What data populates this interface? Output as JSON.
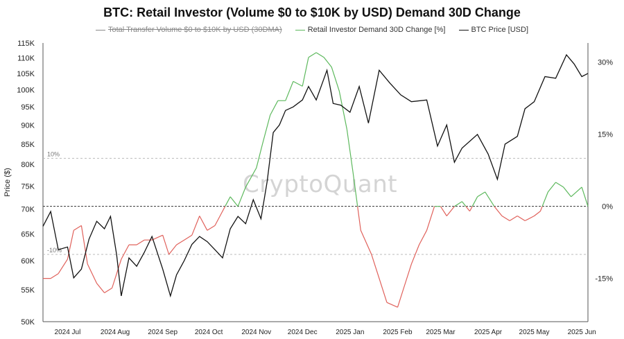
{
  "title": "BTC: Retail Investor (Volume $0 to $10K by USD) Demand 30D Change",
  "watermark": "CryptoQuant",
  "legend": [
    {
      "label": "Total Transfer Volume $0 to $10K by USD (30DMA)",
      "color": "#888888",
      "disabled": true
    },
    {
      "label": "Retail Investor Demand 30D Change [%]",
      "color": "#5cb85c",
      "disabled": false
    },
    {
      "label": "BTC Price [USD]",
      "color": "#111111",
      "disabled": false
    }
  ],
  "chart_data": {
    "type": "line",
    "xlabel": "",
    "ylabel": "Price ($)",
    "x_tick_labels": [
      "2024 Jul",
      "2024 Aug",
      "2024 Sep",
      "2024 Oct",
      "2024 Nov",
      "2024 Dec",
      "2025 Jan",
      "2025 Feb",
      "2025 Mar",
      "2025 Apr",
      "2025 May",
      "2025 Jun"
    ],
    "y_left": {
      "scale": "log",
      "ticks": [
        50000,
        55000,
        60000,
        65000,
        70000,
        75000,
        80000,
        85000,
        90000,
        95000,
        100000,
        105000,
        110000,
        115000
      ],
      "tick_labels": [
        "50K",
        "55K",
        "60K",
        "65K",
        "70K",
        "75K",
        "80K",
        "85K",
        "90K",
        "95K",
        "100K",
        "105K",
        "110K",
        "115K"
      ]
    },
    "y_right": {
      "ticks": [
        30,
        15,
        0,
        -15
      ],
      "tick_labels": [
        "30%",
        "15%",
        "0%",
        "-15%"
      ],
      "range": [
        -24,
        34
      ]
    },
    "reference_lines": [
      {
        "axis": "right",
        "value": 10,
        "label": "10%"
      },
      {
        "axis": "right",
        "value": 0,
        "label": ""
      },
      {
        "axis": "right",
        "value": -10,
        "label": "-10%"
      }
    ],
    "series": [
      {
        "name": "BTC Price [USD]",
        "axis": "left",
        "color": "#111111",
        "x": [
          "2024-06-15",
          "2024-06-20",
          "2024-06-25",
          "2024-07-01",
          "2024-07-05",
          "2024-07-10",
          "2024-07-15",
          "2024-07-20",
          "2024-07-25",
          "2024-07-29",
          "2024-08-02",
          "2024-08-05",
          "2024-08-10",
          "2024-08-15",
          "2024-08-20",
          "2024-08-25",
          "2024-09-01",
          "2024-09-06",
          "2024-09-10",
          "2024-09-15",
          "2024-09-20",
          "2024-09-25",
          "2024-09-30",
          "2024-10-05",
          "2024-10-10",
          "2024-10-15",
          "2024-10-20",
          "2024-10-25",
          "2024-10-30",
          "2024-11-04",
          "2024-11-08",
          "2024-11-12",
          "2024-11-16",
          "2024-11-20",
          "2024-11-25",
          "2024-12-01",
          "2024-12-05",
          "2024-12-10",
          "2024-12-17",
          "2024-12-21",
          "2024-12-26",
          "2025-01-01",
          "2025-01-07",
          "2025-01-13",
          "2025-01-20",
          "2025-01-27",
          "2025-02-03",
          "2025-02-10",
          "2025-02-20",
          "2025-02-27",
          "2025-03-05",
          "2025-03-10",
          "2025-03-15",
          "2025-03-25",
          "2025-04-01",
          "2025-04-07",
          "2025-04-12",
          "2025-04-20",
          "2025-04-25",
          "2025-05-01",
          "2025-05-08",
          "2025-05-15",
          "2025-05-22",
          "2025-05-27",
          "2025-06-01",
          "2025-06-05"
        ],
        "values": [
          66500,
          69500,
          62000,
          62500,
          57000,
          58500,
          64000,
          67500,
          66000,
          68500,
          61000,
          54000,
          60500,
          59000,
          61500,
          64500,
          58500,
          54000,
          57500,
          60000,
          63000,
          64500,
          63500,
          62000,
          60500,
          66000,
          68500,
          67000,
          72000,
          68000,
          76000,
          88000,
          90000,
          94000,
          95000,
          97000,
          101000,
          97000,
          106000,
          96000,
          95500,
          93500,
          101000,
          90500,
          106000,
          102000,
          98500,
          96500,
          97000,
          84500,
          90000,
          80500,
          84000,
          87500,
          82500,
          76500,
          85000,
          87000,
          94500,
          96500,
          104000,
          103500,
          111000,
          108000,
          104000,
          105000
        ]
      },
      {
        "name": "Retail Investor Demand 30D Change [%]",
        "axis": "right",
        "x": [
          "2024-06-15",
          "2024-06-20",
          "2024-06-25",
          "2024-07-01",
          "2024-07-05",
          "2024-07-10",
          "2024-07-14",
          "2024-07-20",
          "2024-07-25",
          "2024-07-30",
          "2024-08-05",
          "2024-08-10",
          "2024-08-15",
          "2024-08-20",
          "2024-08-25",
          "2024-09-01",
          "2024-09-05",
          "2024-09-10",
          "2024-09-15",
          "2024-09-20",
          "2024-09-25",
          "2024-09-30",
          "2024-10-05",
          "2024-10-10",
          "2024-10-15",
          "2024-10-20",
          "2024-10-25",
          "2024-11-01",
          "2024-11-05",
          "2024-11-10",
          "2024-11-15",
          "2024-11-20",
          "2024-11-25",
          "2024-12-01",
          "2024-12-05",
          "2024-12-10",
          "2024-12-15",
          "2024-12-20",
          "2024-12-25",
          "2024-12-30",
          "2025-01-03",
          "2025-01-08",
          "2025-01-15",
          "2025-01-20",
          "2025-01-25",
          "2025-02-01",
          "2025-02-05",
          "2025-02-10",
          "2025-02-15",
          "2025-02-20",
          "2025-02-25",
          "2025-03-01",
          "2025-03-05",
          "2025-03-10",
          "2025-03-15",
          "2025-03-20",
          "2025-03-25",
          "2025-03-30",
          "2025-04-05",
          "2025-04-10",
          "2025-04-15",
          "2025-04-20",
          "2025-04-25",
          "2025-05-01",
          "2025-05-05",
          "2025-05-10",
          "2025-05-15",
          "2025-05-20",
          "2025-05-25",
          "2025-06-01",
          "2025-06-05"
        ],
        "values": [
          -15,
          -15,
          -14,
          -11,
          -5,
          -4,
          -12,
          -16,
          -18,
          -17,
          -11,
          -8,
          -8,
          -7,
          -7,
          -6,
          -10,
          -8,
          -7,
          -6,
          -2,
          -5,
          -4,
          -1,
          2,
          0,
          4,
          8,
          13,
          19,
          22,
          22,
          26,
          25,
          31,
          32,
          31,
          29,
          24,
          16,
          7,
          -5,
          -10,
          -15,
          -20,
          -21,
          -17,
          -12,
          -8,
          -5,
          0,
          0,
          -2,
          0,
          1,
          -1,
          2,
          3,
          0,
          -2,
          -3,
          -2,
          -3,
          -2,
          -1,
          3,
          5,
          4,
          2,
          4,
          0
        ]
      }
    ],
    "demand_color_positive": "#5cb85c",
    "demand_color_negative": "#e0605a",
    "grid": false
  }
}
